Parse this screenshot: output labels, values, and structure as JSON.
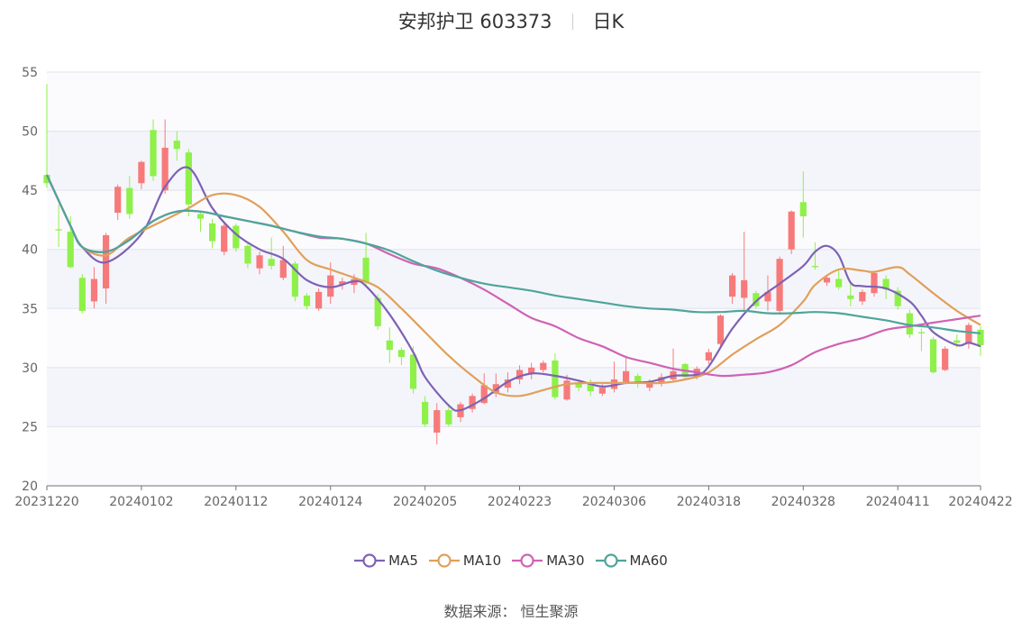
{
  "header": {
    "title": "安邦护卫 603373",
    "period": "日K"
  },
  "footer": {
    "source": "数据来源：  恒生聚源"
  },
  "chart_data": {
    "type": "candlestick",
    "title": "安邦护卫 603373",
    "ylim": [
      20,
      55
    ],
    "y_ticks": [
      20,
      25,
      30,
      35,
      40,
      45,
      50,
      55
    ],
    "x_tick_labels": [
      "20231220",
      "20240102",
      "20240112",
      "20240124",
      "20240205",
      "20240223",
      "20240306",
      "20240318",
      "20240328",
      "20240411",
      "20240422"
    ],
    "x_tick_indices": [
      0,
      8,
      16,
      24,
      32,
      40,
      48,
      56,
      64,
      72,
      79
    ],
    "colors": {
      "up": "#f77a7a",
      "down": "#8ff04a"
    },
    "candles": [
      [
        46.3,
        45.6,
        45.2,
        54.0
      ],
      [
        41.7,
        41.6,
        40.2,
        43.8
      ],
      [
        41.5,
        38.5,
        38.4,
        42.8
      ],
      [
        37.6,
        34.8,
        34.6,
        37.9
      ],
      [
        35.6,
        37.5,
        35.0,
        38.5
      ],
      [
        36.7,
        41.2,
        35.4,
        41.4
      ],
      [
        43.1,
        45.3,
        42.5,
        45.5
      ],
      [
        45.2,
        43.0,
        42.6,
        46.2
      ],
      [
        45.6,
        47.4,
        45.1,
        47.5
      ],
      [
        50.1,
        46.2,
        45.8,
        51.0
      ],
      [
        45.0,
        48.6,
        44.7,
        51.0
      ],
      [
        49.2,
        48.5,
        47.5,
        50.0
      ],
      [
        48.2,
        43.8,
        42.8,
        48.5
      ],
      [
        43.0,
        42.6,
        41.5,
        43.2
      ],
      [
        42.2,
        40.7,
        40.1,
        42.6
      ],
      [
        39.8,
        42.0,
        39.5,
        42.3
      ],
      [
        42.0,
        40.1,
        39.8,
        42.2
      ],
      [
        40.3,
        38.8,
        38.4,
        40.6
      ],
      [
        38.4,
        39.5,
        37.9,
        39.8
      ],
      [
        39.2,
        38.6,
        38.3,
        41.0
      ],
      [
        37.6,
        39.1,
        37.4,
        40.3
      ],
      [
        38.8,
        36.0,
        35.6,
        39.0
      ],
      [
        36.1,
        35.2,
        34.9,
        36.3
      ],
      [
        35.0,
        36.4,
        34.8,
        36.7
      ],
      [
        36.0,
        37.8,
        35.4,
        38.9
      ],
      [
        37.0,
        37.3,
        36.6,
        37.6
      ],
      [
        37.0,
        37.5,
        36.3,
        37.9
      ],
      [
        39.3,
        37.2,
        36.9,
        41.4
      ],
      [
        35.9,
        33.5,
        33.2,
        36.2
      ],
      [
        32.3,
        31.5,
        30.4,
        33.4
      ],
      [
        31.5,
        30.9,
        30.2,
        31.7
      ],
      [
        31.1,
        28.2,
        27.8,
        31.8
      ],
      [
        27.1,
        25.2,
        25.0,
        27.6
      ],
      [
        24.5,
        26.4,
        23.5,
        27.0
      ],
      [
        26.4,
        25.2,
        25.0,
        26.8
      ],
      [
        25.8,
        26.9,
        25.4,
        27.1
      ],
      [
        26.5,
        27.6,
        26.2,
        27.8
      ],
      [
        27.0,
        28.5,
        26.9,
        29.5
      ],
      [
        27.8,
        28.6,
        27.5,
        29.5
      ],
      [
        28.3,
        29.0,
        27.9,
        29.6
      ],
      [
        29.0,
        29.8,
        28.6,
        30.2
      ],
      [
        29.5,
        30.0,
        29.0,
        30.4
      ],
      [
        29.8,
        30.4,
        29.6,
        30.6
      ],
      [
        30.6,
        27.5,
        27.3,
        31.2
      ],
      [
        27.3,
        28.9,
        27.2,
        29.4
      ],
      [
        28.7,
        28.3,
        28.0,
        29.0
      ],
      [
        28.7,
        28.0,
        27.6,
        29.0
      ],
      [
        27.8,
        28.3,
        27.6,
        28.6
      ],
      [
        28.2,
        29.0,
        27.9,
        30.5
      ],
      [
        28.8,
        29.7,
        28.6,
        31.0
      ],
      [
        29.3,
        28.7,
        28.3,
        29.5
      ],
      [
        28.3,
        28.8,
        28.0,
        29.0
      ],
      [
        28.7,
        29.2,
        28.4,
        29.5
      ],
      [
        29.0,
        29.7,
        28.8,
        31.6
      ],
      [
        30.3,
        29.2,
        29.0,
        30.4
      ],
      [
        29.2,
        29.9,
        29.0,
        30.1
      ],
      [
        30.6,
        31.3,
        30.3,
        31.6
      ],
      [
        32.0,
        34.4,
        31.8,
        34.5
      ],
      [
        36.0,
        37.8,
        35.4,
        38.0
      ],
      [
        35.9,
        37.4,
        34.9,
        41.5
      ],
      [
        36.3,
        35.2,
        35.0,
        36.5
      ],
      [
        35.6,
        36.4,
        34.8,
        37.8
      ],
      [
        34.8,
        39.2,
        34.5,
        39.4
      ],
      [
        40.0,
        43.2,
        39.6,
        43.3
      ],
      [
        44.0,
        42.8,
        41.0,
        46.6
      ],
      [
        38.6,
        38.5,
        38.3,
        40.6
      ],
      [
        37.2,
        37.6,
        36.9,
        37.8
      ],
      [
        37.5,
        36.8,
        36.6,
        38.3
      ],
      [
        36.1,
        35.8,
        35.2,
        37.2
      ],
      [
        35.6,
        36.4,
        35.3,
        36.6
      ],
      [
        36.3,
        38.0,
        36.0,
        38.2
      ],
      [
        37.5,
        36.6,
        35.8,
        37.8
      ],
      [
        36.5,
        35.2,
        34.9,
        36.8
      ],
      [
        34.6,
        32.8,
        32.5,
        34.9
      ],
      [
        33.0,
        32.9,
        31.4,
        33.3
      ],
      [
        32.4,
        29.6,
        29.5,
        32.6
      ],
      [
        29.8,
        31.6,
        29.7,
        31.8
      ],
      [
        32.3,
        32.1,
        31.7,
        32.8
      ],
      [
        32.1,
        33.6,
        31.6,
        33.8
      ],
      [
        33.2,
        31.9,
        31.0,
        33.5
      ]
    ],
    "ma_series": [
      {
        "name": "MA5",
        "color": "#7e62b4",
        "points": [
          [
            0,
            46.3
          ],
          [
            2,
            42.0
          ],
          [
            3,
            40.2
          ],
          [
            5,
            38.9
          ],
          [
            8,
            41.3
          ],
          [
            10,
            45.3
          ],
          [
            12,
            46.9
          ],
          [
            14,
            43.5
          ],
          [
            16,
            41.3
          ],
          [
            18,
            40.0
          ],
          [
            20,
            39.2
          ],
          [
            22,
            37.4
          ],
          [
            24,
            36.8
          ],
          [
            26,
            37.3
          ],
          [
            27,
            36.9
          ],
          [
            29,
            34.5
          ],
          [
            31,
            31.3
          ],
          [
            32,
            29.2
          ],
          [
            34,
            26.8
          ],
          [
            35,
            26.4
          ],
          [
            37,
            27.4
          ],
          [
            39,
            28.8
          ],
          [
            41,
            29.5
          ],
          [
            43,
            29.3
          ],
          [
            45,
            28.9
          ],
          [
            47,
            28.4
          ],
          [
            49,
            28.7
          ],
          [
            51,
            28.8
          ],
          [
            53,
            29.3
          ],
          [
            55,
            29.4
          ],
          [
            56,
            30.1
          ],
          [
            58,
            33.3
          ],
          [
            60,
            35.6
          ],
          [
            62,
            37.1
          ],
          [
            64,
            38.6
          ],
          [
            65,
            39.8
          ],
          [
            66,
            40.3
          ],
          [
            67,
            39.5
          ],
          [
            68,
            37.2
          ],
          [
            69,
            36.9
          ],
          [
            71,
            36.7
          ],
          [
            73,
            35.6
          ],
          [
            74,
            34.4
          ],
          [
            75,
            33.0
          ],
          [
            77,
            31.9
          ],
          [
            78,
            32.1
          ],
          [
            79,
            31.8
          ]
        ]
      },
      {
        "name": "MA10",
        "color": "#e0a05a",
        "points": [
          [
            0,
            46.3
          ],
          [
            2,
            42.0
          ],
          [
            3,
            40.2
          ],
          [
            5,
            39.5
          ],
          [
            7,
            41.0
          ],
          [
            10,
            42.5
          ],
          [
            12,
            43.5
          ],
          [
            14,
            44.6
          ],
          [
            16,
            44.6
          ],
          [
            18,
            43.6
          ],
          [
            20,
            41.5
          ],
          [
            22,
            39.1
          ],
          [
            24,
            38.3
          ],
          [
            26,
            37.6
          ],
          [
            28,
            36.8
          ],
          [
            30,
            35.0
          ],
          [
            32,
            33.0
          ],
          [
            34,
            31.0
          ],
          [
            36,
            29.3
          ],
          [
            38,
            27.9
          ],
          [
            40,
            27.6
          ],
          [
            42,
            28.1
          ],
          [
            44,
            28.6
          ],
          [
            46,
            28.7
          ],
          [
            48,
            28.7
          ],
          [
            50,
            28.7
          ],
          [
            52,
            28.7
          ],
          [
            54,
            29.0
          ],
          [
            56,
            29.6
          ],
          [
            58,
            31.1
          ],
          [
            60,
            32.4
          ],
          [
            62,
            33.6
          ],
          [
            64,
            35.6
          ],
          [
            65,
            37.0
          ],
          [
            67,
            38.3
          ],
          [
            69,
            38.2
          ],
          [
            70,
            38.1
          ],
          [
            72,
            38.5
          ],
          [
            73,
            37.9
          ],
          [
            75,
            36.3
          ],
          [
            77,
            34.8
          ],
          [
            79,
            33.6
          ]
        ]
      },
      {
        "name": "MA30",
        "color": "#d062b4",
        "points": [
          [
            0,
            46.3
          ],
          [
            2,
            42.0
          ],
          [
            3,
            40.2
          ],
          [
            5,
            39.8
          ],
          [
            7,
            40.8
          ],
          [
            9,
            42.4
          ],
          [
            11,
            43.2
          ],
          [
            13,
            43.2
          ],
          [
            15,
            42.8
          ],
          [
            17,
            42.4
          ],
          [
            19,
            42.0
          ],
          [
            21,
            41.5
          ],
          [
            23,
            41.0
          ],
          [
            25,
            40.9
          ],
          [
            27,
            40.5
          ],
          [
            29,
            39.6
          ],
          [
            31,
            38.8
          ],
          [
            33,
            38.4
          ],
          [
            35,
            37.6
          ],
          [
            37,
            36.6
          ],
          [
            39,
            35.4
          ],
          [
            41,
            34.2
          ],
          [
            43,
            33.5
          ],
          [
            45,
            32.5
          ],
          [
            47,
            31.8
          ],
          [
            49,
            30.9
          ],
          [
            51,
            30.4
          ],
          [
            53,
            29.9
          ],
          [
            55,
            29.6
          ],
          [
            57,
            29.3
          ],
          [
            59,
            29.4
          ],
          [
            61,
            29.6
          ],
          [
            63,
            30.2
          ],
          [
            65,
            31.3
          ],
          [
            67,
            32.0
          ],
          [
            69,
            32.5
          ],
          [
            71,
            33.2
          ],
          [
            73,
            33.5
          ],
          [
            75,
            33.8
          ],
          [
            77,
            34.1
          ],
          [
            79,
            34.4
          ]
        ]
      },
      {
        "name": "MA60",
        "color": "#4ea59a",
        "points": [
          [
            0,
            46.3
          ],
          [
            2,
            42.0
          ],
          [
            3,
            40.2
          ],
          [
            5,
            39.8
          ],
          [
            7,
            40.8
          ],
          [
            9,
            42.4
          ],
          [
            11,
            43.2
          ],
          [
            13,
            43.2
          ],
          [
            15,
            42.8
          ],
          [
            17,
            42.4
          ],
          [
            19,
            42.0
          ],
          [
            21,
            41.5
          ],
          [
            23,
            41.1
          ],
          [
            25,
            40.9
          ],
          [
            27,
            40.5
          ],
          [
            29,
            39.9
          ],
          [
            31,
            39.0
          ],
          [
            33,
            38.2
          ],
          [
            35,
            37.6
          ],
          [
            37,
            37.1
          ],
          [
            39,
            36.8
          ],
          [
            41,
            36.5
          ],
          [
            43,
            36.1
          ],
          [
            45,
            35.8
          ],
          [
            47,
            35.5
          ],
          [
            49,
            35.2
          ],
          [
            51,
            35.0
          ],
          [
            53,
            34.9
          ],
          [
            55,
            34.7
          ],
          [
            57,
            34.7
          ],
          [
            59,
            34.8
          ],
          [
            61,
            34.6
          ],
          [
            63,
            34.6
          ],
          [
            65,
            34.7
          ],
          [
            67,
            34.6
          ],
          [
            69,
            34.3
          ],
          [
            71,
            34.0
          ],
          [
            73,
            33.6
          ],
          [
            75,
            33.4
          ],
          [
            77,
            33.1
          ],
          [
            79,
            32.9
          ]
        ]
      }
    ]
  }
}
